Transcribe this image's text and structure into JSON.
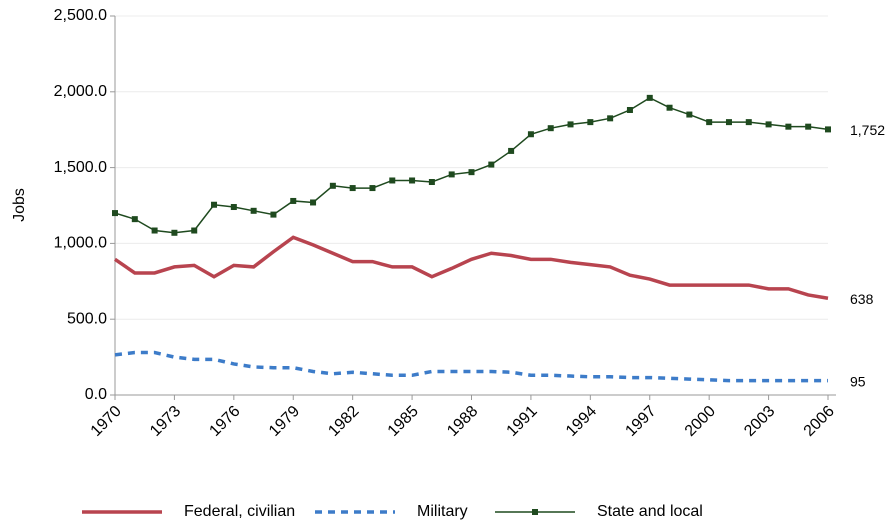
{
  "chart_data": {
    "type": "line",
    "y_label": "Jobs",
    "x": [
      1970,
      1971,
      1972,
      1973,
      1974,
      1975,
      1976,
      1977,
      1978,
      1979,
      1980,
      1981,
      1982,
      1983,
      1984,
      1985,
      1986,
      1987,
      1988,
      1989,
      1990,
      1991,
      1992,
      1993,
      1994,
      1995,
      1996,
      1997,
      1998,
      1999,
      2000,
      2001,
      2002,
      2003,
      2004,
      2005,
      2006
    ],
    "xlim": [
      1970,
      2006
    ],
    "xticks": [
      1970,
      1973,
      1976,
      1979,
      1982,
      1985,
      1988,
      1991,
      1994,
      1997,
      2000,
      2003,
      2006
    ],
    "ylim": [
      0,
      2500
    ],
    "yticks": [
      {
        "value": 0,
        "label": "0.0"
      },
      {
        "value": 500,
        "label": "500.0"
      },
      {
        "value": 1000,
        "label": "1,000.0"
      },
      {
        "value": 1500,
        "label": "1,500.0"
      },
      {
        "value": 2000,
        "label": "2,000.0"
      },
      {
        "value": 2500,
        "label": "2,500.0"
      }
    ],
    "grid": true,
    "legend": "bottom",
    "series": [
      {
        "name": "Federal, civilian",
        "color": "#b8444f",
        "style": "solid",
        "markers": false,
        "end_label": true,
        "values": [
          895,
          805,
          805,
          845,
          855,
          780,
          855,
          845,
          945,
          1040,
          990,
          935,
          880,
          880,
          845,
          845,
          780,
          835,
          895,
          935,
          920,
          895,
          895,
          875,
          860,
          845,
          790,
          765,
          725,
          725,
          725,
          725,
          725,
          700,
          700,
          660,
          638
        ]
      },
      {
        "name": "Military",
        "color": "#3d7cc9",
        "style": "dashed",
        "markers": false,
        "end_label": true,
        "values": [
          265,
          280,
          280,
          250,
          235,
          235,
          205,
          185,
          180,
          180,
          155,
          140,
          150,
          140,
          130,
          130,
          155,
          155,
          155,
          155,
          150,
          130,
          130,
          125,
          120,
          120,
          115,
          115,
          110,
          105,
          100,
          95,
          95,
          95,
          95,
          95,
          95
        ]
      },
      {
        "name": "State and local",
        "color": "#1f4a1f",
        "style": "solid",
        "markers": true,
        "end_label": true,
        "values": [
          1200,
          1160,
          1085,
          1070,
          1085,
          1255,
          1240,
          1215,
          1190,
          1280,
          1270,
          1380,
          1365,
          1365,
          1415,
          1415,
          1405,
          1455,
          1470,
          1520,
          1610,
          1720,
          1760,
          1785,
          1800,
          1825,
          1880,
          1960,
          1895,
          1850,
          1800,
          1800,
          1800,
          1785,
          1770,
          1770,
          1752
        ],
        "value_labels": [
          null,
          null,
          null,
          null,
          null,
          null,
          null,
          null,
          null,
          null,
          null,
          null,
          null,
          null,
          null,
          null,
          null,
          null,
          null,
          null,
          null,
          null,
          null,
          null,
          null,
          null,
          null,
          null,
          null,
          null,
          null,
          null,
          null,
          null,
          null,
          null,
          "1,752"
        ]
      }
    ]
  }
}
